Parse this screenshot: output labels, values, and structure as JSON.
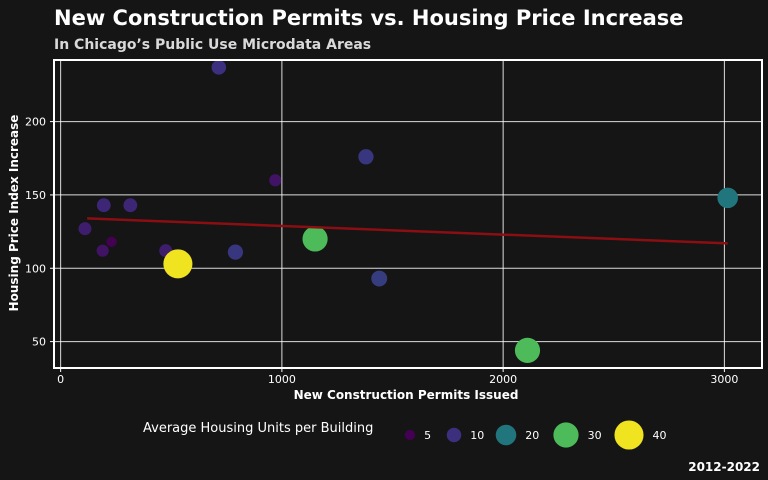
{
  "colors": {
    "background": "#151515",
    "panel_border": "#ffffff",
    "grid": "#ffffff",
    "text": "#ffffff",
    "subtitle": "#d9d9d9",
    "trend_line": "#8b0e12"
  },
  "chart_data": {
    "type": "scatter",
    "title": "New Construction Permits vs. Housing Price Increase",
    "subtitle": "In Chicago’s Public Use Microdata Areas",
    "xlabel": "New Construction Permits Issued",
    "ylabel": "Housing Price Index Increase",
    "caption": "2012-2022",
    "xlim": [
      -30,
      3170
    ],
    "ylim": [
      32,
      242
    ],
    "x_ticks": [
      {
        "value": 0,
        "label": "0"
      },
      {
        "value": 1000,
        "label": "1000"
      },
      {
        "value": 2000,
        "label": "2000"
      },
      {
        "value": 3000,
        "label": "3000"
      }
    ],
    "y_ticks": [
      {
        "value": 50,
        "label": "50"
      },
      {
        "value": 100,
        "label": "100"
      },
      {
        "value": 150,
        "label": "150"
      },
      {
        "value": 200,
        "label": "200"
      }
    ],
    "grid": true,
    "size_legend": {
      "title": "Average Housing Units per Building",
      "placement": "bottom",
      "items": [
        {
          "value": 5,
          "label": "5",
          "color": "#440154"
        },
        {
          "value": 10,
          "label": "10",
          "color": "#3b2f7e"
        },
        {
          "value": 20,
          "label": "20",
          "color": "#21767e"
        },
        {
          "value": 30,
          "label": "30",
          "color": "#4dbb5a"
        },
        {
          "value": 40,
          "label": "40",
          "color": "#f0e320"
        }
      ]
    },
    "points": [
      {
        "x": 110,
        "y": 127,
        "size": 8
      },
      {
        "x": 190,
        "y": 112,
        "size": 7
      },
      {
        "x": 195,
        "y": 143,
        "size": 9
      },
      {
        "x": 230,
        "y": 118,
        "size": 5
      },
      {
        "x": 315,
        "y": 143,
        "size": 9
      },
      {
        "x": 475,
        "y": 112,
        "size": 8
      },
      {
        "x": 530,
        "y": 103,
        "size": 40
      },
      {
        "x": 715,
        "y": 237,
        "size": 10
      },
      {
        "x": 790,
        "y": 111,
        "size": 11
      },
      {
        "x": 970,
        "y": 160,
        "size": 7
      },
      {
        "x": 1150,
        "y": 120,
        "size": 30
      },
      {
        "x": 1380,
        "y": 176,
        "size": 11
      },
      {
        "x": 1440,
        "y": 93,
        "size": 12
      },
      {
        "x": 2110,
        "y": 44,
        "size": 30
      },
      {
        "x": 3015,
        "y": 148,
        "size": 20
      }
    ],
    "trend_line": {
      "x": [
        120,
        3015
      ],
      "y": [
        134,
        117
      ]
    }
  }
}
